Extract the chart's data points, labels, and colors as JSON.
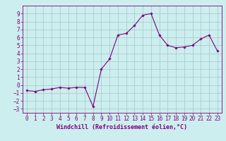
{
  "x": [
    0,
    1,
    2,
    3,
    4,
    5,
    6,
    7,
    8,
    9,
    10,
    11,
    12,
    13,
    14,
    15,
    16,
    17,
    18,
    19,
    20,
    21,
    22,
    23
  ],
  "y": [
    -0.7,
    -0.8,
    -0.6,
    -0.5,
    -0.3,
    -0.4,
    -0.3,
    -0.3,
    -2.7,
    2.0,
    3.3,
    6.3,
    6.5,
    7.5,
    8.8,
    9.0,
    6.3,
    5.0,
    4.7,
    4.8,
    5.0,
    5.8,
    6.3,
    4.3
  ],
  "line_color": "#800080",
  "marker_color": "#800080",
  "bg_color": "#cceeee",
  "grid_color": "#aacccc",
  "xlabel": "Windchill (Refroidissement éolien,°C)",
  "xlabel_fontsize": 6,
  "tick_fontsize": 5.5,
  "ylim": [
    -3.5,
    10
  ],
  "xlim": [
    -0.5,
    23.5
  ],
  "yticks": [
    -3,
    -2,
    -1,
    0,
    1,
    2,
    3,
    4,
    5,
    6,
    7,
    8,
    9
  ],
  "xticks": [
    0,
    1,
    2,
    3,
    4,
    5,
    6,
    7,
    8,
    9,
    10,
    11,
    12,
    13,
    14,
    15,
    16,
    17,
    18,
    19,
    20,
    21,
    22,
    23
  ]
}
